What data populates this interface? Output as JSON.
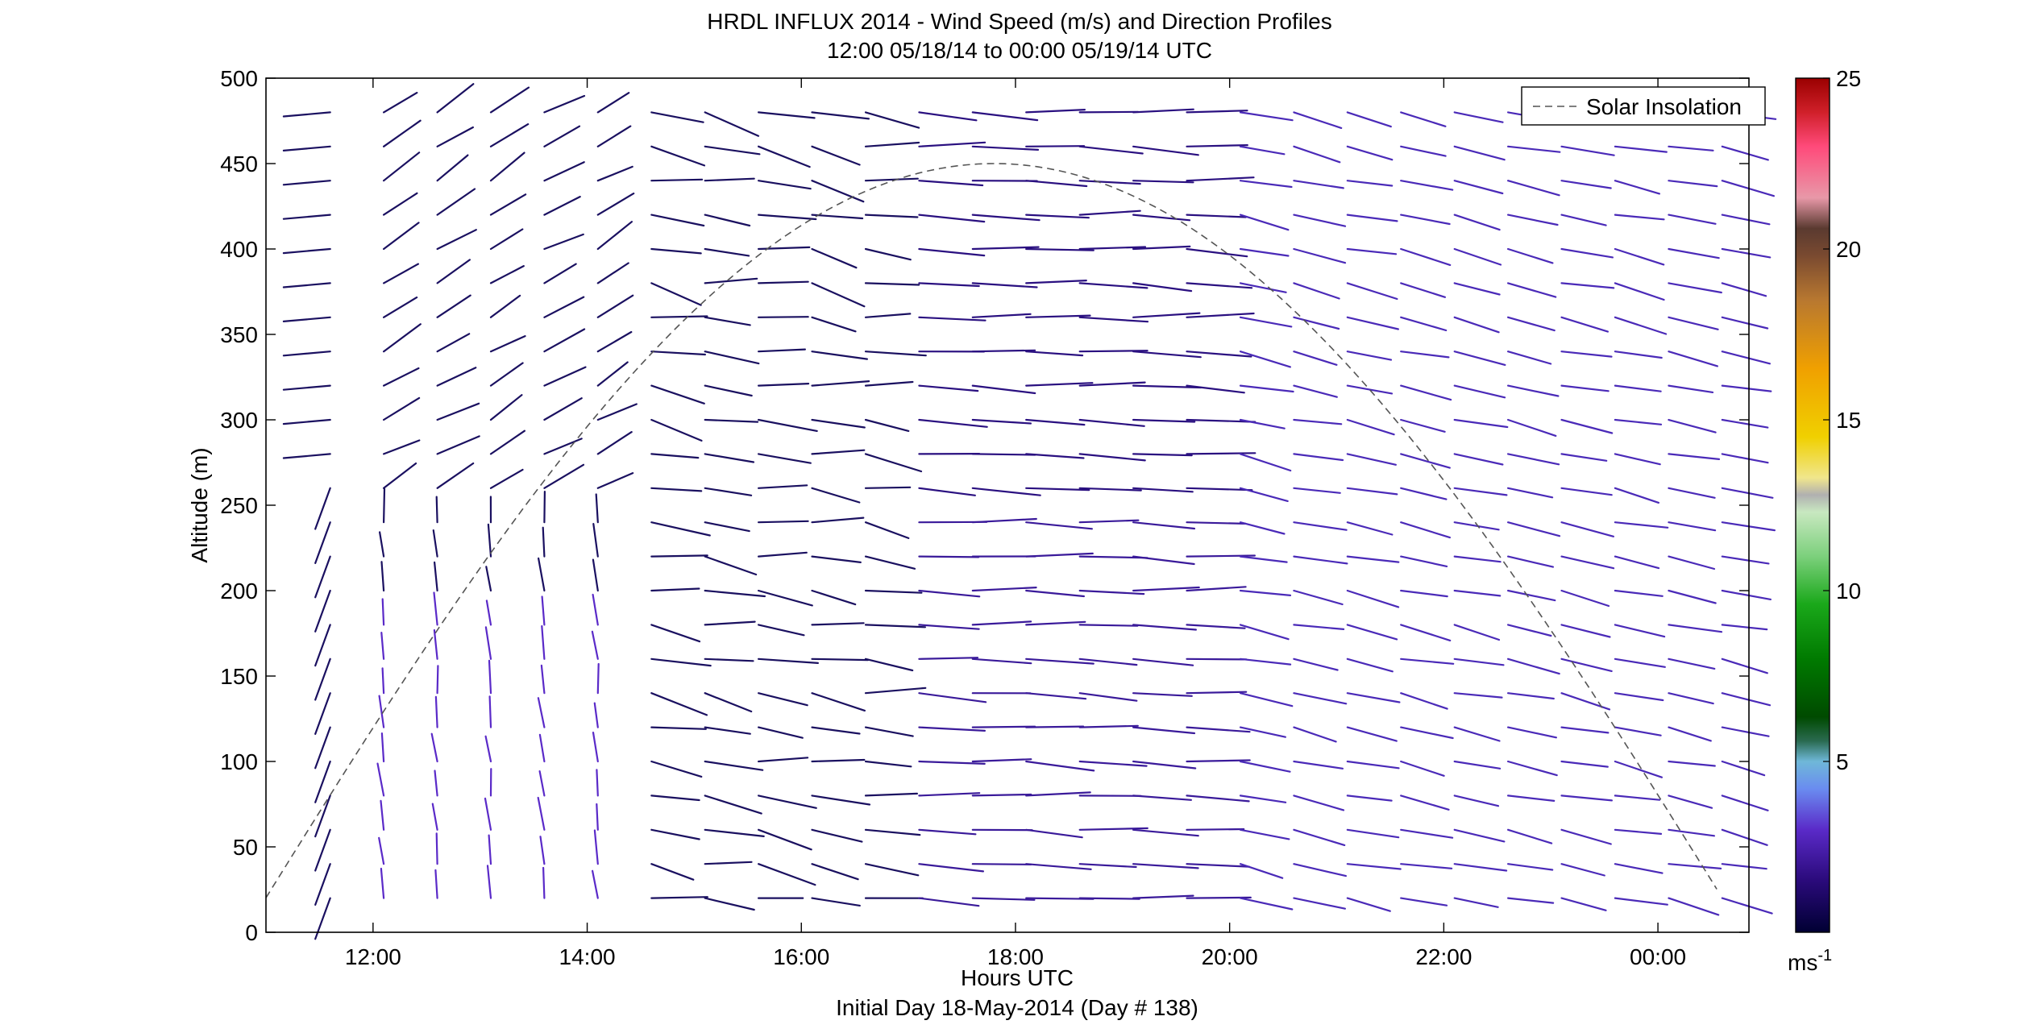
{
  "chart_data": {
    "type": "wind-barb-profile",
    "title_line1": "HRDL INFLUX 2014 - Wind Speed (m/s) and Direction Profiles",
    "title_line2": "12:00 05/18/14 to 00:00 05/19/14  UTC",
    "xlabel": "Hours UTC",
    "xlabel2": "Initial Day 18-May-2014 (Day # 138)",
    "ylabel": "Altitude (m)",
    "xlim": [
      11.0,
      24.85
    ],
    "ylim": [
      0,
      500
    ],
    "x_ticks": [
      {
        "value": 12,
        "label": "12:00"
      },
      {
        "value": 14,
        "label": "14:00"
      },
      {
        "value": 16,
        "label": "16:00"
      },
      {
        "value": 18,
        "label": "18:00"
      },
      {
        "value": 20,
        "label": "20:00"
      },
      {
        "value": 22,
        "label": "22:00"
      },
      {
        "value": 24,
        "label": "00:00"
      }
    ],
    "y_ticks": [
      0,
      50,
      100,
      150,
      200,
      250,
      300,
      350,
      400,
      450,
      500
    ],
    "legend": {
      "label": "Solar Insolation",
      "position": "top-right",
      "color": "#555555"
    },
    "colorbar": {
      "min": 0,
      "max": 25,
      "ticks": [
        5,
        10,
        15,
        20,
        25
      ],
      "unit_base": "ms",
      "unit_exp": "-1",
      "stops": [
        {
          "v": 0,
          "c": "#000033"
        },
        {
          "v": 1.5,
          "c": "#2a0a7a"
        },
        {
          "v": 3.0,
          "c": "#5a2ac8"
        },
        {
          "v": 4.2,
          "c": "#6a8cf0"
        },
        {
          "v": 5.0,
          "c": "#6fb8d8"
        },
        {
          "v": 5.6,
          "c": "#2a6a50"
        },
        {
          "v": 6.3,
          "c": "#004a00"
        },
        {
          "v": 8.0,
          "c": "#007a00"
        },
        {
          "v": 9.6,
          "c": "#1aa81a"
        },
        {
          "v": 11.0,
          "c": "#7cd07c"
        },
        {
          "v": 12.3,
          "c": "#c8e8c0"
        },
        {
          "v": 12.8,
          "c": "#b0b0b0"
        },
        {
          "v": 13.3,
          "c": "#f0e68c"
        },
        {
          "v": 14.5,
          "c": "#f0d000"
        },
        {
          "v": 16.5,
          "c": "#f0a000"
        },
        {
          "v": 18.5,
          "c": "#b87830"
        },
        {
          "v": 19.8,
          "c": "#7a4a30"
        },
        {
          "v": 20.6,
          "c": "#5a3a30"
        },
        {
          "v": 21.5,
          "c": "#e898a8"
        },
        {
          "v": 23.0,
          "c": "#ff4a7a"
        },
        {
          "v": 24.0,
          "c": "#d0202a"
        },
        {
          "v": 25.0,
          "c": "#9a0000"
        }
      ]
    },
    "solar_insolation": {
      "peak_time": 17.8,
      "half_width_hours": 7.0,
      "peak_altitude": 450
    },
    "profiles": [
      {
        "time": 11.6,
        "color": "#1a1060",
        "barbs": [
          [
            20,
            "SW",
            1
          ],
          [
            40,
            "SW",
            1
          ],
          [
            60,
            "SW",
            1
          ],
          [
            80,
            "SW",
            1
          ],
          [
            100,
            "SW",
            1
          ],
          [
            120,
            "SW",
            1
          ],
          [
            140,
            "SW",
            1
          ],
          [
            160,
            "SW",
            1
          ],
          [
            180,
            "SW",
            1
          ],
          [
            200,
            "SW",
            1
          ],
          [
            220,
            "SW",
            1
          ],
          [
            240,
            "SW",
            1
          ],
          [
            260,
            "SW",
            1
          ],
          [
            280,
            "W",
            2
          ],
          [
            300,
            "W",
            2
          ],
          [
            320,
            "W",
            2
          ],
          [
            340,
            "W",
            2
          ],
          [
            360,
            "W",
            2
          ],
          [
            380,
            "W",
            2
          ],
          [
            400,
            "W",
            2
          ],
          [
            420,
            "W",
            2
          ],
          [
            440,
            "W",
            2
          ],
          [
            460,
            "W",
            2
          ],
          [
            480,
            "W",
            2
          ]
        ]
      }
    ]
  }
}
